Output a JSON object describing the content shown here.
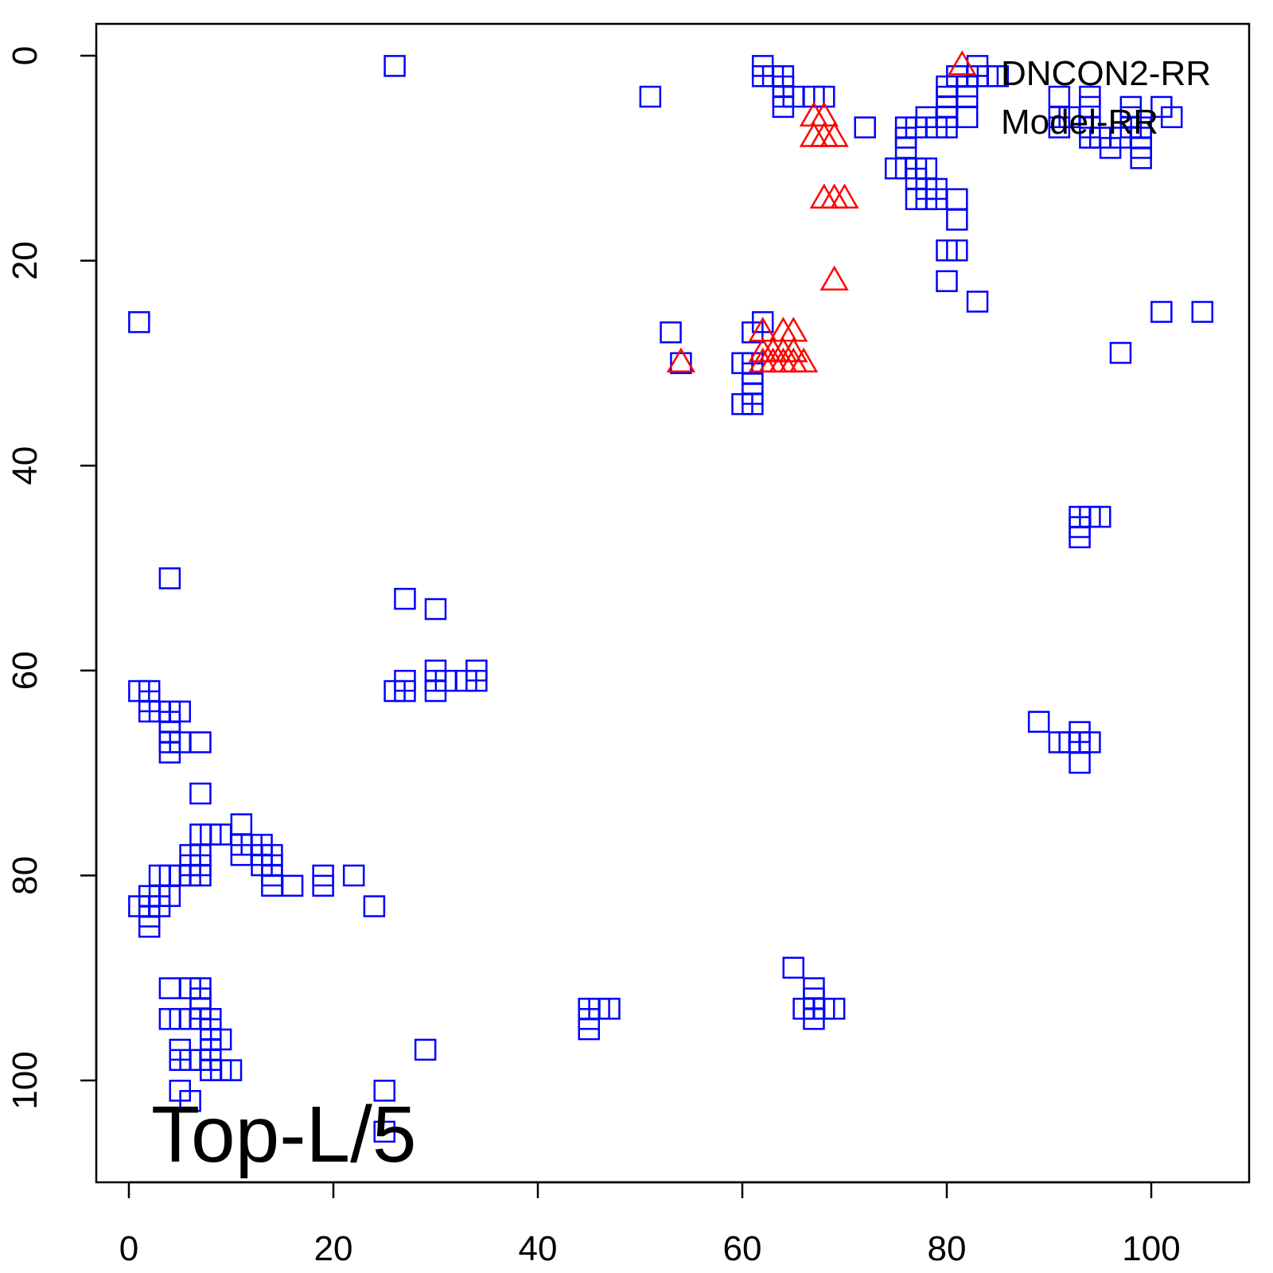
{
  "chart_data": {
    "type": "scatter",
    "title": "",
    "xlabel": "",
    "ylabel": "",
    "xlim": [
      -3,
      110
    ],
    "ylim": [
      109,
      -3
    ],
    "y_reversed": true,
    "grid": false,
    "xticks": [
      "0",
      "20",
      "40",
      "60",
      "80",
      "100"
    ],
    "yticks": [
      "0",
      "20",
      "40",
      "60",
      "80",
      "100"
    ],
    "annotation": "Top-L/5",
    "legend": {
      "placement": "top-right",
      "entries": [
        "DNCON2-RR",
        "Model-RR"
      ]
    },
    "series": [
      {
        "name": "DNCON2-RR",
        "marker": "triangle",
        "color": "#ff0000",
        "points": [
          [
            81.5,
            1
          ],
          [
            67,
            6
          ],
          [
            68,
            6
          ],
          [
            67,
            8
          ],
          [
            68,
            8
          ],
          [
            69,
            8
          ],
          [
            68,
            14
          ],
          [
            69,
            14
          ],
          [
            70,
            14
          ],
          [
            69,
            22
          ],
          [
            54,
            30
          ],
          [
            62,
            27
          ],
          [
            64,
            27
          ],
          [
            65,
            27
          ],
          [
            62,
            29
          ],
          [
            63,
            29
          ],
          [
            64,
            29
          ],
          [
            65,
            29
          ],
          [
            62,
            30
          ],
          [
            63,
            30
          ],
          [
            64,
            30
          ],
          [
            65,
            30
          ],
          [
            66,
            30
          ]
        ]
      },
      {
        "name": "Model-RR",
        "marker": "square",
        "color": "#0000ff",
        "points": [
          [
            26,
            1
          ],
          [
            62,
            1
          ],
          [
            62,
            2
          ],
          [
            63,
            2
          ],
          [
            64,
            2
          ],
          [
            64,
            3
          ],
          [
            64,
            4
          ],
          [
            64,
            5
          ],
          [
            65,
            4
          ],
          [
            67,
            4
          ],
          [
            68,
            4
          ],
          [
            51,
            4
          ],
          [
            72,
            7
          ],
          [
            76,
            7
          ],
          [
            76,
            8
          ],
          [
            76,
            9
          ],
          [
            75,
            11
          ],
          [
            76,
            11
          ],
          [
            77,
            11
          ],
          [
            78,
            11
          ],
          [
            77,
            12
          ],
          [
            78,
            13
          ],
          [
            79,
            13
          ],
          [
            77,
            14
          ],
          [
            78,
            14
          ],
          [
            79,
            14
          ],
          [
            81,
            14
          ],
          [
            81,
            16
          ],
          [
            80,
            19
          ],
          [
            81,
            19
          ],
          [
            80,
            22
          ],
          [
            83,
            24
          ],
          [
            78,
            6
          ],
          [
            79,
            7
          ],
          [
            77,
            7
          ],
          [
            80,
            3
          ],
          [
            80,
            4
          ],
          [
            80,
            5
          ],
          [
            80,
            6
          ],
          [
            80,
            7
          ],
          [
            81,
            2
          ],
          [
            82,
            3
          ],
          [
            82,
            4
          ],
          [
            83,
            1
          ],
          [
            83,
            2
          ],
          [
            84,
            2
          ],
          [
            85,
            2
          ],
          [
            82,
            6
          ],
          [
            91,
            4
          ],
          [
            91,
            6
          ],
          [
            91,
            7
          ],
          [
            92,
            6
          ],
          [
            94,
            4
          ],
          [
            94,
            5
          ],
          [
            94,
            7
          ],
          [
            94,
            8
          ],
          [
            95,
            8
          ],
          [
            96,
            9
          ],
          [
            97,
            8
          ],
          [
            98,
            6
          ],
          [
            98,
            7
          ],
          [
            98,
            5
          ],
          [
            99,
            7
          ],
          [
            99,
            8
          ],
          [
            99,
            9
          ],
          [
            99,
            10
          ],
          [
            101,
            5
          ],
          [
            102,
            6
          ],
          [
            101,
            25
          ],
          [
            105,
            25
          ],
          [
            97,
            29
          ],
          [
            1,
            26
          ],
          [
            53,
            27
          ],
          [
            54,
            30
          ],
          [
            62,
            26
          ],
          [
            61,
            27
          ],
          [
            60,
            30
          ],
          [
            61,
            30
          ],
          [
            61,
            31
          ],
          [
            61,
            32
          ],
          [
            61,
            33
          ],
          [
            60,
            34
          ],
          [
            61,
            34
          ],
          [
            93,
            45
          ],
          [
            94,
            45
          ],
          [
            95,
            45
          ],
          [
            93,
            46
          ],
          [
            93,
            47
          ],
          [
            89,
            65
          ],
          [
            91,
            67
          ],
          [
            92,
            67
          ],
          [
            93,
            67
          ],
          [
            94,
            67
          ],
          [
            93,
            66
          ],
          [
            93,
            69
          ],
          [
            4,
            51
          ],
          [
            27,
            53
          ],
          [
            30,
            54
          ],
          [
            1,
            62
          ],
          [
            2,
            62
          ],
          [
            2,
            63
          ],
          [
            2,
            64
          ],
          [
            3,
            64
          ],
          [
            4,
            64
          ],
          [
            5,
            64
          ],
          [
            4,
            65
          ],
          [
            4,
            66
          ],
          [
            4,
            67
          ],
          [
            5,
            67
          ],
          [
            7,
            67
          ],
          [
            4,
            68
          ],
          [
            27,
            61
          ],
          [
            26,
            62
          ],
          [
            27,
            62
          ],
          [
            30,
            60
          ],
          [
            30,
            61
          ],
          [
            31,
            61
          ],
          [
            33,
            61
          ],
          [
            34,
            60
          ],
          [
            34,
            61
          ],
          [
            30,
            62
          ],
          [
            7,
            72
          ],
          [
            11,
            75
          ],
          [
            7,
            76
          ],
          [
            8,
            76
          ],
          [
            9,
            76
          ],
          [
            11,
            77
          ],
          [
            12,
            77
          ],
          [
            13,
            77
          ],
          [
            6,
            78
          ],
          [
            7,
            78
          ],
          [
            11,
            78
          ],
          [
            13,
            78
          ],
          [
            14,
            78
          ],
          [
            6,
            79
          ],
          [
            7,
            79
          ],
          [
            13,
            79
          ],
          [
            14,
            79
          ],
          [
            3,
            80
          ],
          [
            4,
            80
          ],
          [
            5,
            80
          ],
          [
            6,
            80
          ],
          [
            7,
            80
          ],
          [
            14,
            80
          ],
          [
            14,
            81
          ],
          [
            16,
            81
          ],
          [
            19,
            80
          ],
          [
            19,
            81
          ],
          [
            22,
            80
          ],
          [
            2,
            82
          ],
          [
            3,
            82
          ],
          [
            4,
            82
          ],
          [
            1,
            83
          ],
          [
            2,
            83
          ],
          [
            3,
            83
          ],
          [
            2,
            84
          ],
          [
            2,
            85
          ],
          [
            24,
            83
          ],
          [
            4,
            91
          ],
          [
            6,
            91
          ],
          [
            7,
            91
          ],
          [
            7,
            92
          ],
          [
            7,
            93
          ],
          [
            4,
            94
          ],
          [
            5,
            94
          ],
          [
            6,
            94
          ],
          [
            7,
            94
          ],
          [
            8,
            94
          ],
          [
            8,
            95
          ],
          [
            8,
            96
          ],
          [
            9,
            96
          ],
          [
            5,
            97
          ],
          [
            8,
            97
          ],
          [
            5,
            98
          ],
          [
            6,
            98
          ],
          [
            7,
            98
          ],
          [
            8,
            98
          ],
          [
            8,
            99
          ],
          [
            9,
            99
          ],
          [
            10,
            99
          ],
          [
            29,
            97
          ],
          [
            5,
            101
          ],
          [
            6,
            102
          ],
          [
            25,
            101
          ],
          [
            25,
            105
          ],
          [
            65,
            89
          ],
          [
            67,
            91
          ],
          [
            67,
            92
          ],
          [
            66,
            93
          ],
          [
            67,
            93
          ],
          [
            68,
            93
          ],
          [
            69,
            93
          ],
          [
            67,
            94
          ],
          [
            45,
            93
          ],
          [
            46,
            93
          ],
          [
            47,
            93
          ],
          [
            45,
            94
          ],
          [
            45,
            95
          ]
        ]
      }
    ]
  }
}
